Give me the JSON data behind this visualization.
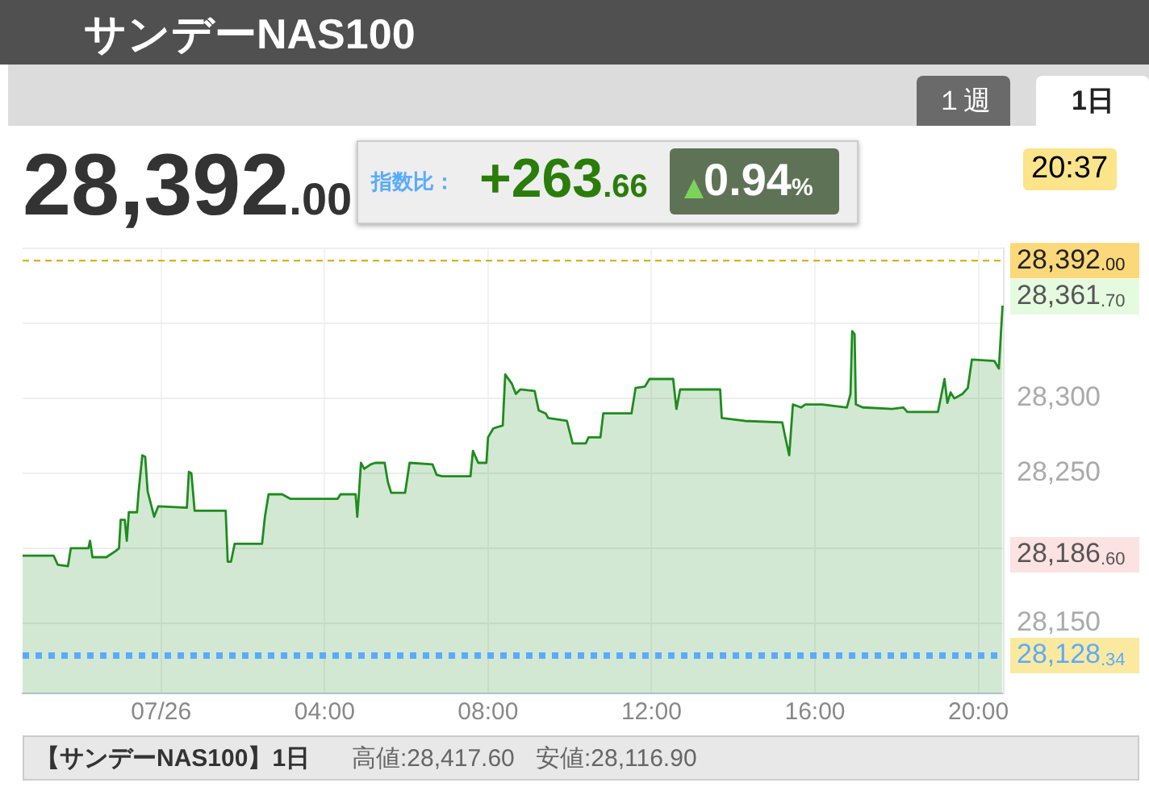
{
  "chart_data": {
    "type": "area",
    "title": "サンデーNAS100",
    "x": [
      -3.39,
      -2.63,
      -2.53,
      -2.28,
      -2.21,
      -1.78,
      -1.74,
      -1.68,
      -1.34,
      -1.12,
      -1.03,
      -0.99,
      -0.89,
      -0.84,
      -0.79,
      -0.59,
      -0.55,
      -0.46,
      -0.39,
      -0.33,
      -0.17,
      -0.07,
      0.63,
      0.68,
      0.74,
      0.82,
      1.58,
      1.63,
      1.71,
      1.8,
      2.47,
      2.54,
      2.63,
      2.96,
      3.16,
      4.32,
      4.39,
      4.76,
      4.8,
      4.84,
      4.89,
      4.97,
      5.13,
      5.24,
      5.47,
      5.55,
      5.63,
      5.97,
      6.08,
      6.64,
      6.74,
      6.88,
      7.57,
      7.63,
      7.76,
      7.96,
      8.0,
      8.13,
      8.36,
      8.42,
      8.58,
      8.68,
      8.79,
      9.14,
      9.24,
      9.41,
      9.47,
      9.93,
      10.07,
      10.39,
      10.46,
      10.75,
      10.82,
      11.51,
      11.61,
      11.84,
      11.95,
      12.53,
      12.61,
      12.7,
      13.68,
      13.72,
      14.28,
      15.2,
      15.26,
      15.37,
      15.46,
      15.66,
      15.76,
      16.18,
      16.78,
      16.87,
      16.91,
      16.97,
      17.0,
      17.17,
      17.89,
      18.16,
      18.26,
      19.01,
      19.17,
      19.24,
      19.32,
      19.41,
      19.61,
      19.74,
      19.84,
      20.39,
      20.5,
      20.59
    ],
    "series": [
      {
        "color": "#1e8c1e",
        "values": [
          28195,
          28195,
          28189,
          28188,
          28200,
          28200,
          28205,
          28194,
          28194,
          28198,
          28200,
          28219,
          28219,
          28205,
          28224,
          28224,
          28238,
          28262,
          28261,
          28238,
          28221,
          28228,
          28227,
          28251,
          28250,
          28225,
          28225,
          28191,
          28191,
          28203,
          28203,
          28221,
          28236,
          28236,
          28233,
          28233,
          28236,
          28236,
          28221,
          28236,
          28257,
          28253,
          28256,
          28257,
          28257,
          28244,
          28237,
          28237,
          28257,
          28256,
          28249,
          28248,
          28248,
          28265,
          28257,
          28257,
          28274,
          28280,
          28282,
          28316,
          28310,
          28303,
          28306,
          28305,
          28292,
          28290,
          28287,
          28285,
          28270,
          28270,
          28274,
          28274,
          28290,
          28290,
          28307,
          28308,
          28313,
          28313,
          28293,
          28306,
          28306,
          28287,
          28285,
          28284,
          28276,
          28262,
          28296,
          28294,
          28296,
          28296,
          28294,
          28303,
          28345,
          28343,
          28296,
          28294,
          28293,
          28294,
          28291,
          28291,
          28313,
          28297,
          28304,
          28300,
          28303,
          28307,
          28326,
          28325,
          28320,
          28362
        ]
      }
    ],
    "xlim": [
      -3.39,
      20.62
    ],
    "xticks": [
      {
        "value": 0,
        "label": "07/26"
      },
      {
        "value": 4,
        "label": "04:00"
      },
      {
        "value": 8,
        "label": "08:00"
      },
      {
        "value": 12,
        "label": "12:00"
      },
      {
        "value": 16,
        "label": "16:00"
      },
      {
        "value": 20,
        "label": "20:00"
      }
    ],
    "ylim": [
      28103,
      28400
    ],
    "yticks": [
      {
        "value": 28150,
        "label": "28,150"
      },
      {
        "value": 28200,
        "label": null
      },
      {
        "value": 28250,
        "label": "28,250"
      },
      {
        "value": 28300,
        "label": "28,300"
      },
      {
        "value": 28350,
        "label": null
      },
      {
        "value": 28400,
        "label": null
      }
    ],
    "grid": true,
    "ref_lines": [
      {
        "axis": "y",
        "value": 28392,
        "label": "28,392.00",
        "color": "#d4a800",
        "line_style": "dashed"
      },
      {
        "axis": "y",
        "value": 28128.34,
        "label": "28,128.34",
        "color": "#5aabff",
        "line_style": "dotted"
      }
    ],
    "annotations": [
      "28,392.00",
      "指数比：",
      "+263.66",
      "0.94%",
      "20:37",
      "１週",
      "1日",
      "【サンデーNAS100】1日",
      "高値:28,417.60",
      "安値:28,116.90",
      "28,361.70",
      "28,186.60"
    ]
  }
}
